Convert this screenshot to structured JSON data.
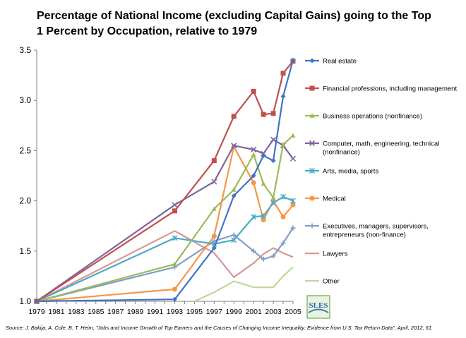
{
  "title": "Percentage of National Income (excluding Capital Gains) going to the Top 1 Percent by Occupation, relative to 1979",
  "source": "Source: J. Bakija, A. Cole, B. T. Heim, \"Jobs and Income Growth of Top Earners and the Causes of Changing Income Inequality: Evidence from U.S. Tax Return Data\", April, 2012, 61.",
  "logo_text": "SLES",
  "chart_data": {
    "type": "line",
    "title": "Percentage of National Income (excluding Capital Gains) going to the Top 1 Percent by Occupation, relative to 1979",
    "xlabel": "",
    "ylabel": "",
    "xlim": [
      1979,
      2005
    ],
    "ylim": [
      1.0,
      3.5
    ],
    "x_ticks": [
      1979,
      1981,
      1983,
      1985,
      1987,
      1989,
      1991,
      1993,
      1995,
      1997,
      1999,
      2001,
      2003,
      2005
    ],
    "y_ticks": [
      1.0,
      1.5,
      2.0,
      2.5,
      3.0,
      3.5
    ],
    "y_tick_labels": [
      "1.0",
      "1.5",
      "2.0",
      "2.5",
      "3.0",
      "3.5"
    ],
    "grid": false,
    "legend_position": "right",
    "x": [
      1979,
      1993,
      1997,
      1999,
      2001,
      2002,
      2003,
      2004,
      2005
    ],
    "series": [
      {
        "name": "Real estate",
        "color": "#4472C4",
        "marker": "diamond",
        "points": [
          [
            1979,
            1.0
          ],
          [
            1993,
            1.02
          ],
          [
            1997,
            1.53
          ],
          [
            1999,
            2.05
          ],
          [
            2001,
            2.25
          ],
          [
            2002,
            2.45
          ],
          [
            2003,
            2.4
          ],
          [
            2004,
            3.04
          ],
          [
            2005,
            3.4
          ]
        ]
      },
      {
        "name": "Financial professions, including management",
        "color": "#C0504D",
        "marker": "square",
        "points": [
          [
            1979,
            1.0
          ],
          [
            1993,
            1.9
          ],
          [
            1997,
            2.4
          ],
          [
            1999,
            2.84
          ],
          [
            2001,
            3.09
          ],
          [
            2002,
            2.86
          ],
          [
            2003,
            2.87
          ],
          [
            2004,
            3.27
          ],
          [
            2005,
            3.39
          ]
        ]
      },
      {
        "name": "Business operations (nonfinance)",
        "color": "#9BBB59",
        "marker": "triangle",
        "points": [
          [
            1979,
            1.0
          ],
          [
            1993,
            1.37
          ],
          [
            1997,
            1.92
          ],
          [
            1999,
            2.11
          ],
          [
            2001,
            2.46
          ],
          [
            2002,
            2.17
          ],
          [
            2003,
            2.03
          ],
          [
            2004,
            2.56
          ],
          [
            2005,
            2.65
          ]
        ]
      },
      {
        "name": "Computer, math, engineering, technical (nonfinance)",
        "color": "#8064A2",
        "marker": "x",
        "points": [
          [
            1979,
            1.0
          ],
          [
            1993,
            1.96
          ],
          [
            1997,
            2.19
          ],
          [
            1999,
            2.55
          ],
          [
            2001,
            2.51
          ],
          [
            2002,
            2.47
          ],
          [
            2003,
            2.61
          ],
          [
            2004,
            2.55
          ],
          [
            2005,
            2.42
          ]
        ]
      },
      {
        "name": "Arts, media, sports",
        "color": "#4BACC6",
        "marker": "star",
        "points": [
          [
            1979,
            1.0
          ],
          [
            1993,
            1.63
          ],
          [
            1997,
            1.57
          ],
          [
            1999,
            1.61
          ],
          [
            2001,
            1.84
          ],
          [
            2002,
            1.85
          ],
          [
            2003,
            1.98
          ],
          [
            2004,
            2.04
          ],
          [
            2005,
            2.0
          ]
        ]
      },
      {
        "name": "Medical",
        "color": "#F79646",
        "marker": "circle",
        "points": [
          [
            1979,
            1.0
          ],
          [
            1993,
            1.12
          ],
          [
            1997,
            1.65
          ],
          [
            1999,
            2.54
          ],
          [
            2001,
            2.18
          ],
          [
            2002,
            1.81
          ],
          [
            2003,
            2.0
          ],
          [
            2004,
            1.84
          ],
          [
            2005,
            1.96
          ]
        ]
      },
      {
        "name": "Executives, managers, supervisors, entrepreneurs (non-finance)",
        "color": "#7F9FC9",
        "marker": "plus",
        "points": [
          [
            1979,
            1.0
          ],
          [
            1993,
            1.34
          ],
          [
            1997,
            1.6
          ],
          [
            1999,
            1.66
          ],
          [
            2001,
            1.5
          ],
          [
            2002,
            1.42
          ],
          [
            2003,
            1.45
          ],
          [
            2004,
            1.58
          ],
          [
            2005,
            1.73
          ]
        ]
      },
      {
        "name": "Lawyers",
        "color": "#D99694",
        "marker": "none",
        "points": [
          [
            1979,
            1.0
          ],
          [
            1993,
            1.7
          ],
          [
            1997,
            1.48
          ],
          [
            1999,
            1.24
          ],
          [
            2001,
            1.38
          ],
          [
            2002,
            1.47
          ],
          [
            2003,
            1.53
          ],
          [
            2004,
            1.48
          ],
          [
            2005,
            1.44
          ]
        ]
      },
      {
        "name": "Other",
        "color": "#C3D69B",
        "marker": "none",
        "points": [
          [
            1995,
            1.0
          ],
          [
            1997,
            1.09
          ],
          [
            1999,
            1.2
          ],
          [
            2001,
            1.14
          ],
          [
            2002,
            1.14
          ],
          [
            2003,
            1.14
          ],
          [
            2004,
            1.25
          ],
          [
            2005,
            1.34
          ]
        ]
      }
    ]
  }
}
